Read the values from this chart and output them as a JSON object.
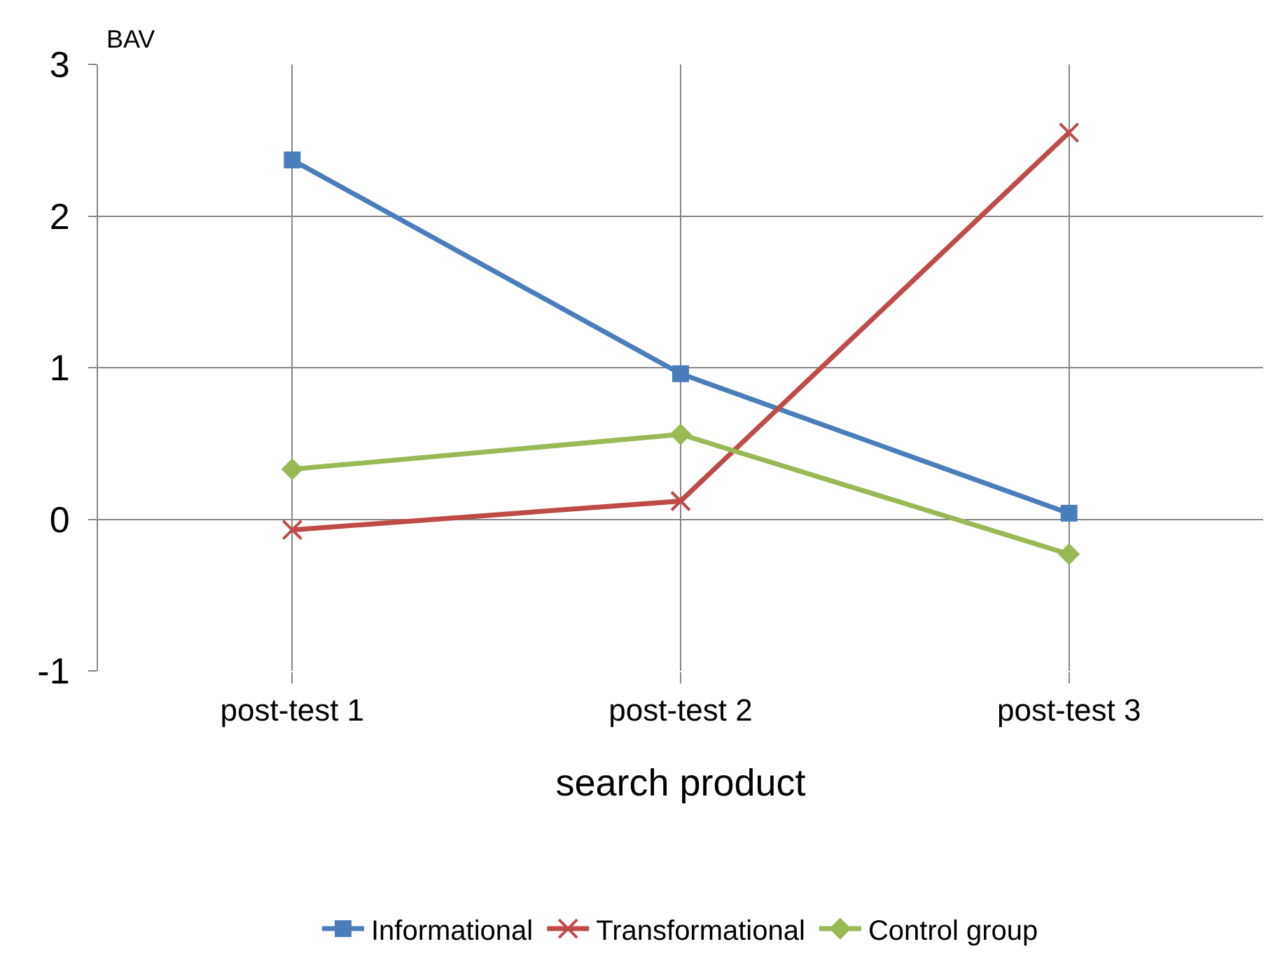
{
  "chart_data": {
    "type": "line",
    "xlabel": "search product",
    "ylabel": "BAV",
    "categories": [
      "post-test 1",
      "post-test 2",
      "post-test 3"
    ],
    "series": [
      {
        "name": "Informational",
        "color": "#4a7ebb",
        "marker": "square",
        "values": [
          2.37,
          0.96,
          0.04
        ]
      },
      {
        "name": "Transformational",
        "color": "#be4b48",
        "marker": "cross",
        "values": [
          -0.07,
          0.12,
          2.55
        ]
      },
      {
        "name": "Control group",
        "color": "#98b954",
        "marker": "diamond",
        "values": [
          0.33,
          0.56,
          -0.23
        ]
      }
    ],
    "ylim": [
      -1,
      3
    ],
    "yticks": [
      -1,
      0,
      1,
      2,
      3
    ],
    "grid": true,
    "legend": "bottom",
    "line_style": "solid"
  }
}
